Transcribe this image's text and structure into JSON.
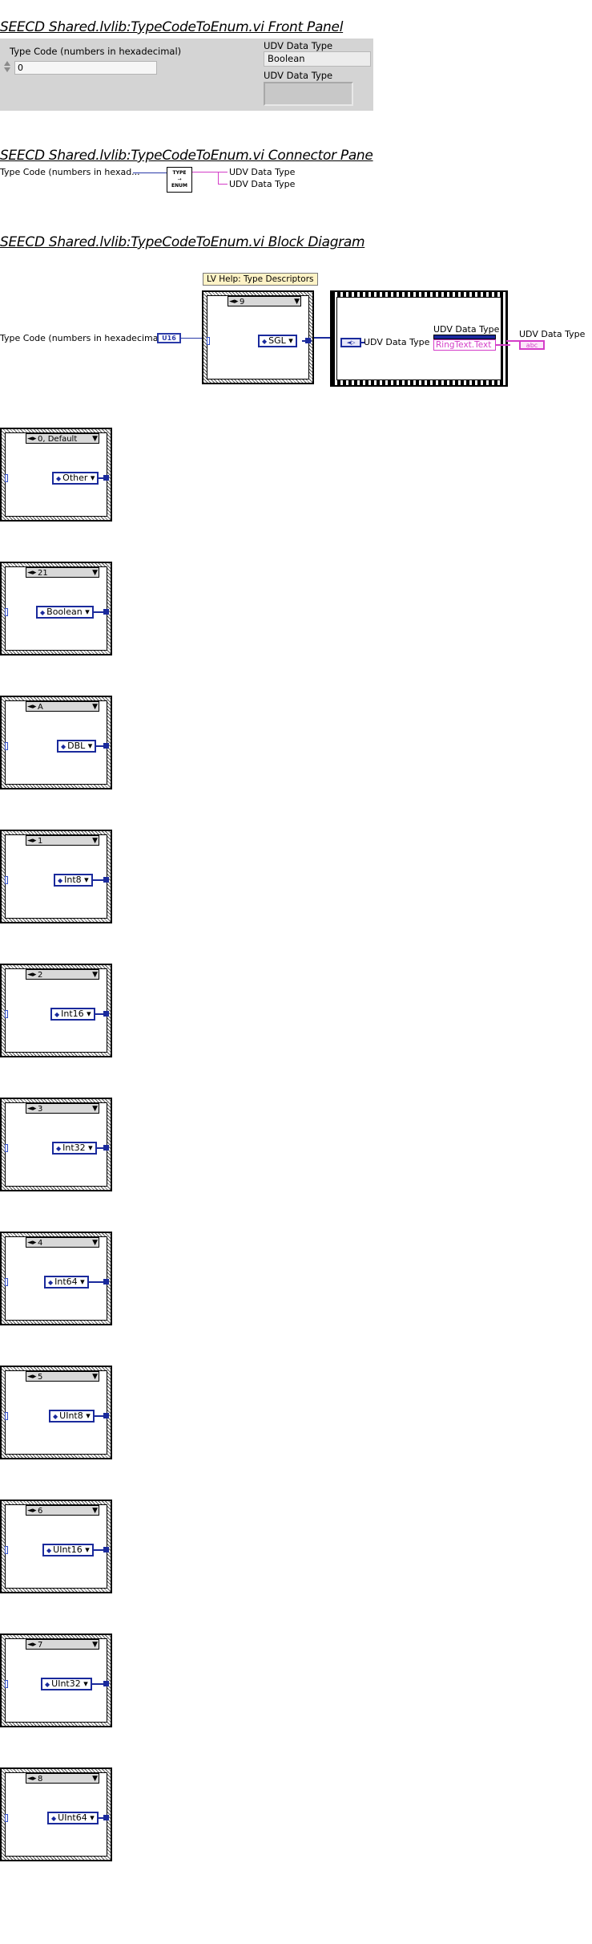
{
  "front_panel": {
    "title": "SEECD Shared.lvlib:TypeCodeToEnum.vi Front Panel",
    "type_code_label": "Type Code (numbers in hexadecimal)",
    "type_code_value": "0",
    "udv_label_1": "UDV Data Type",
    "udv_value_1": "Boolean",
    "udv_label_2": "UDV Data Type"
  },
  "connector_pane": {
    "title": "SEECD Shared.lvlib:TypeCodeToEnum.vi Connector Pane",
    "input_label": "Type Code (numbers in hexad...",
    "icon_text_top": "TYPE",
    "icon_text_mid": "→",
    "icon_text_bot": "ENUM",
    "output_1": "UDV Data Type",
    "output_2": "UDV Data Type"
  },
  "block_diagram": {
    "title": "SEECD Shared.lvlib:TypeCodeToEnum.vi Block Diagram",
    "help_label": "LV Help: Type Descriptors",
    "input_terminal_label": "Type Code (numbers in hexadecimal)",
    "input_terminal_text": "U16",
    "main_case_selector": "9",
    "main_case_const": "SGL",
    "udv_ref_label": "UDV Data Type",
    "property_node_label": "UDV Data Type",
    "property_node_prop": "RingText.Text",
    "output_label": "UDV Data Type",
    "output_terminal_text": "abc"
  },
  "cases": [
    {
      "selector": "0, Default",
      "const": "Other"
    },
    {
      "selector": "21",
      "const": "Boolean"
    },
    {
      "selector": "A",
      "const": "DBL"
    },
    {
      "selector": "1",
      "const": "Int8"
    },
    {
      "selector": "2",
      "const": "Int16"
    },
    {
      "selector": "3",
      "const": "Int32"
    },
    {
      "selector": "4",
      "const": "Int64"
    },
    {
      "selector": "5",
      "const": "UInt8"
    },
    {
      "selector": "6",
      "const": "UInt16"
    },
    {
      "selector": "7",
      "const": "UInt32"
    },
    {
      "selector": "8",
      "const": "UInt64"
    }
  ],
  "colors": {
    "enum_blue": "#1a2a9c",
    "string_pink": "#d43dc8"
  }
}
